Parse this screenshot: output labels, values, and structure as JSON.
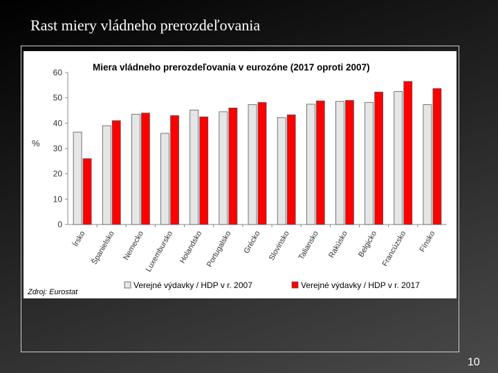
{
  "slide": {
    "title": "Rast miery vládneho prerozdeľovania",
    "page_number": "10"
  },
  "colors": {
    "series_2007": "#e6e6e6",
    "series_2017": "#ff0000",
    "bar_stroke": "#555555"
  },
  "chart_data": {
    "type": "bar",
    "title": "Miera vládneho prerozdeľovania v eurozóne (2017 oproti 2007)",
    "ylabel": "%",
    "ylim": [
      0,
      60
    ],
    "yticks": [
      0,
      10,
      20,
      30,
      40,
      50,
      60
    ],
    "categories": [
      "Írsko",
      "Španielsko",
      "Nemecko",
      "Luxembursko",
      "Holandsko",
      "Portugalsko",
      "Grécko",
      "Slovinsko",
      "Taliansko",
      "Rakúsko",
      "Belgicko",
      "Francúzsko",
      "Fínsko"
    ],
    "series": [
      {
        "name": "Verejné výdavky / HDP v r. 2007",
        "values": [
          36.5,
          39,
          43.5,
          36,
          45.2,
          44.5,
          47.3,
          42.2,
          47.5,
          48.6,
          48.2,
          52.5,
          47.3
        ]
      },
      {
        "name": "Verejné výdavky / HDP v r. 2017",
        "values": [
          26,
          41,
          44,
          43,
          42.5,
          46,
          48.2,
          43.3,
          48.8,
          49,
          52.3,
          56.5,
          53.7
        ]
      }
    ],
    "source": "Zdroj: Eurostat"
  }
}
